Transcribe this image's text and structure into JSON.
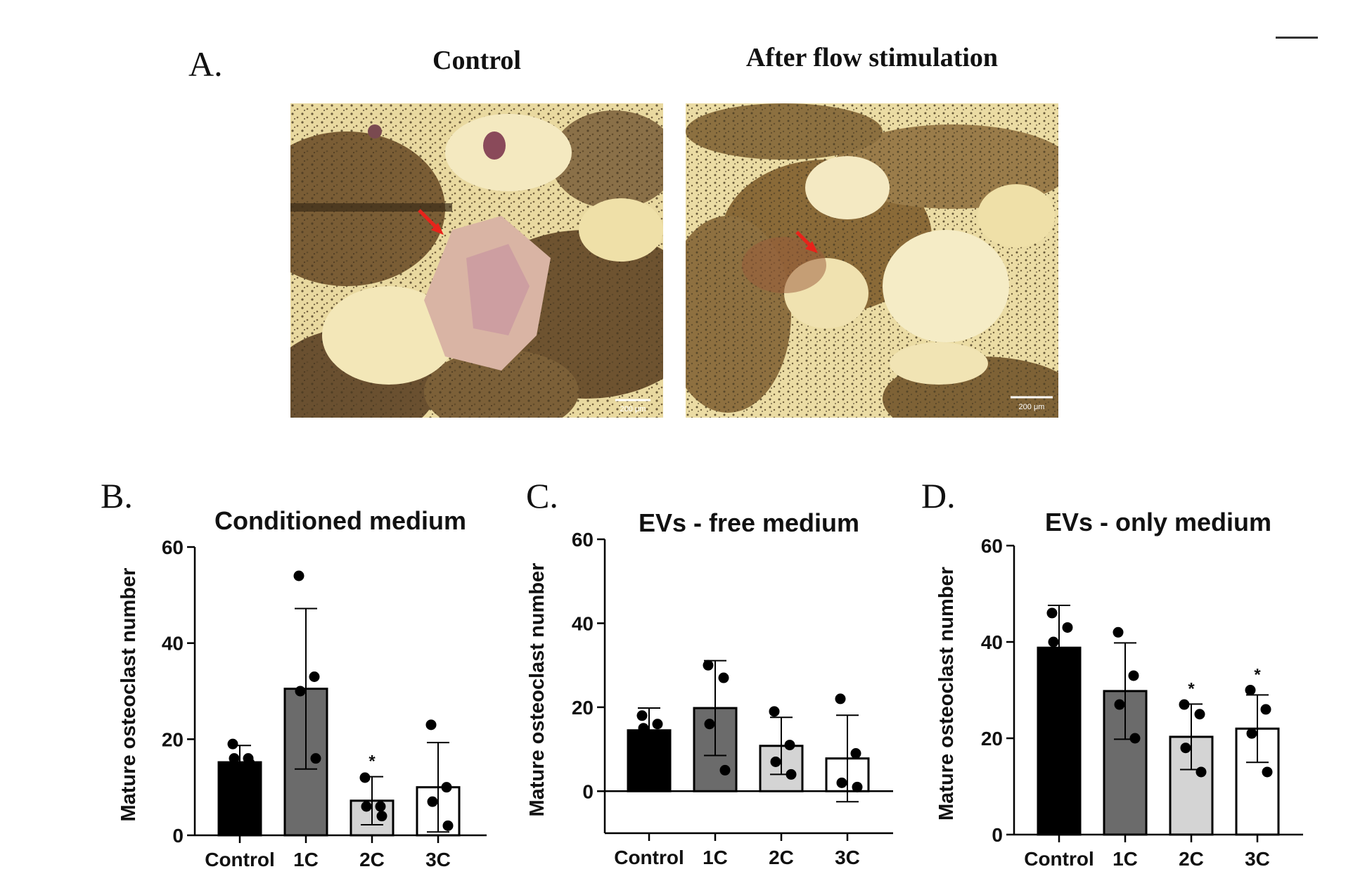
{
  "panel_a": {
    "letter": "A.",
    "left_title": "Control",
    "right_title": "After flow stimulation",
    "scale_bar_label": "200 μm"
  },
  "panel_letters": {
    "b": "B.",
    "c": "C.",
    "d": "D."
  },
  "chart_data": [
    {
      "type": "bar",
      "title": "Conditioned medium",
      "ylabel": "Mature osteoclast number",
      "xlabel": "",
      "categories": [
        "Control",
        "1C",
        "2C",
        "3C"
      ],
      "values": [
        15.2,
        30.5,
        7.2,
        10.0
      ],
      "errors": [
        3.5,
        16.7,
        5.0,
        9.3
      ],
      "significance": [
        "",
        "",
        "*",
        ""
      ],
      "points": [
        [
          19,
          16,
          16,
          15
        ],
        [
          54,
          33,
          30,
          16
        ],
        [
          12,
          6,
          6,
          4
        ],
        [
          23,
          10,
          7,
          2
        ]
      ],
      "bar_colors": [
        "#000000",
        "#6b6b6b",
        "#d4d4d4",
        "#ffffff"
      ],
      "ylim": [
        0,
        60
      ],
      "yticks": [
        0,
        20,
        40,
        60
      ],
      "grid": false,
      "legend": "none"
    },
    {
      "type": "bar",
      "title": "EVs - free medium",
      "ylabel": "Mature osteoclast number",
      "xlabel": "",
      "categories": [
        "Control",
        "1C",
        "2C",
        "3C"
      ],
      "values": [
        14.5,
        19.8,
        10.8,
        7.8
      ],
      "errors": [
        5.3,
        11.3,
        6.8,
        10.3
      ],
      "significance": [
        "",
        "",
        "",
        ""
      ],
      "points": [
        [
          18,
          16,
          15,
          13
        ],
        [
          30,
          27,
          16,
          5
        ],
        [
          19,
          11,
          7,
          4
        ],
        [
          22,
          9,
          2,
          1
        ]
      ],
      "bar_colors": [
        "#000000",
        "#6b6b6b",
        "#d4d4d4",
        "#ffffff"
      ],
      "ylim": [
        -10,
        60
      ],
      "yticks": [
        0,
        20,
        40,
        60
      ],
      "grid": false,
      "legend": "none"
    },
    {
      "type": "bar",
      "title": "EVs - only medium",
      "ylabel": "Mature osteoclast number",
      "xlabel": "",
      "categories": [
        "Control",
        "1C",
        "2C",
        "3C"
      ],
      "values": [
        38.8,
        29.8,
        20.3,
        22.0
      ],
      "errors": [
        8.8,
        10.0,
        6.8,
        7.0
      ],
      "significance": [
        "",
        "",
        "*",
        "*"
      ],
      "points": [
        [
          46,
          43,
          40,
          37
        ],
        [
          42,
          33,
          27,
          20
        ],
        [
          27,
          25,
          18,
          13
        ],
        [
          30,
          26,
          21,
          13
        ]
      ],
      "bar_colors": [
        "#000000",
        "#6b6b6b",
        "#d4d4d4",
        "#ffffff"
      ],
      "ylim": [
        0,
        60
      ],
      "yticks": [
        0,
        20,
        40,
        60
      ],
      "grid": false,
      "legend": "none"
    }
  ]
}
